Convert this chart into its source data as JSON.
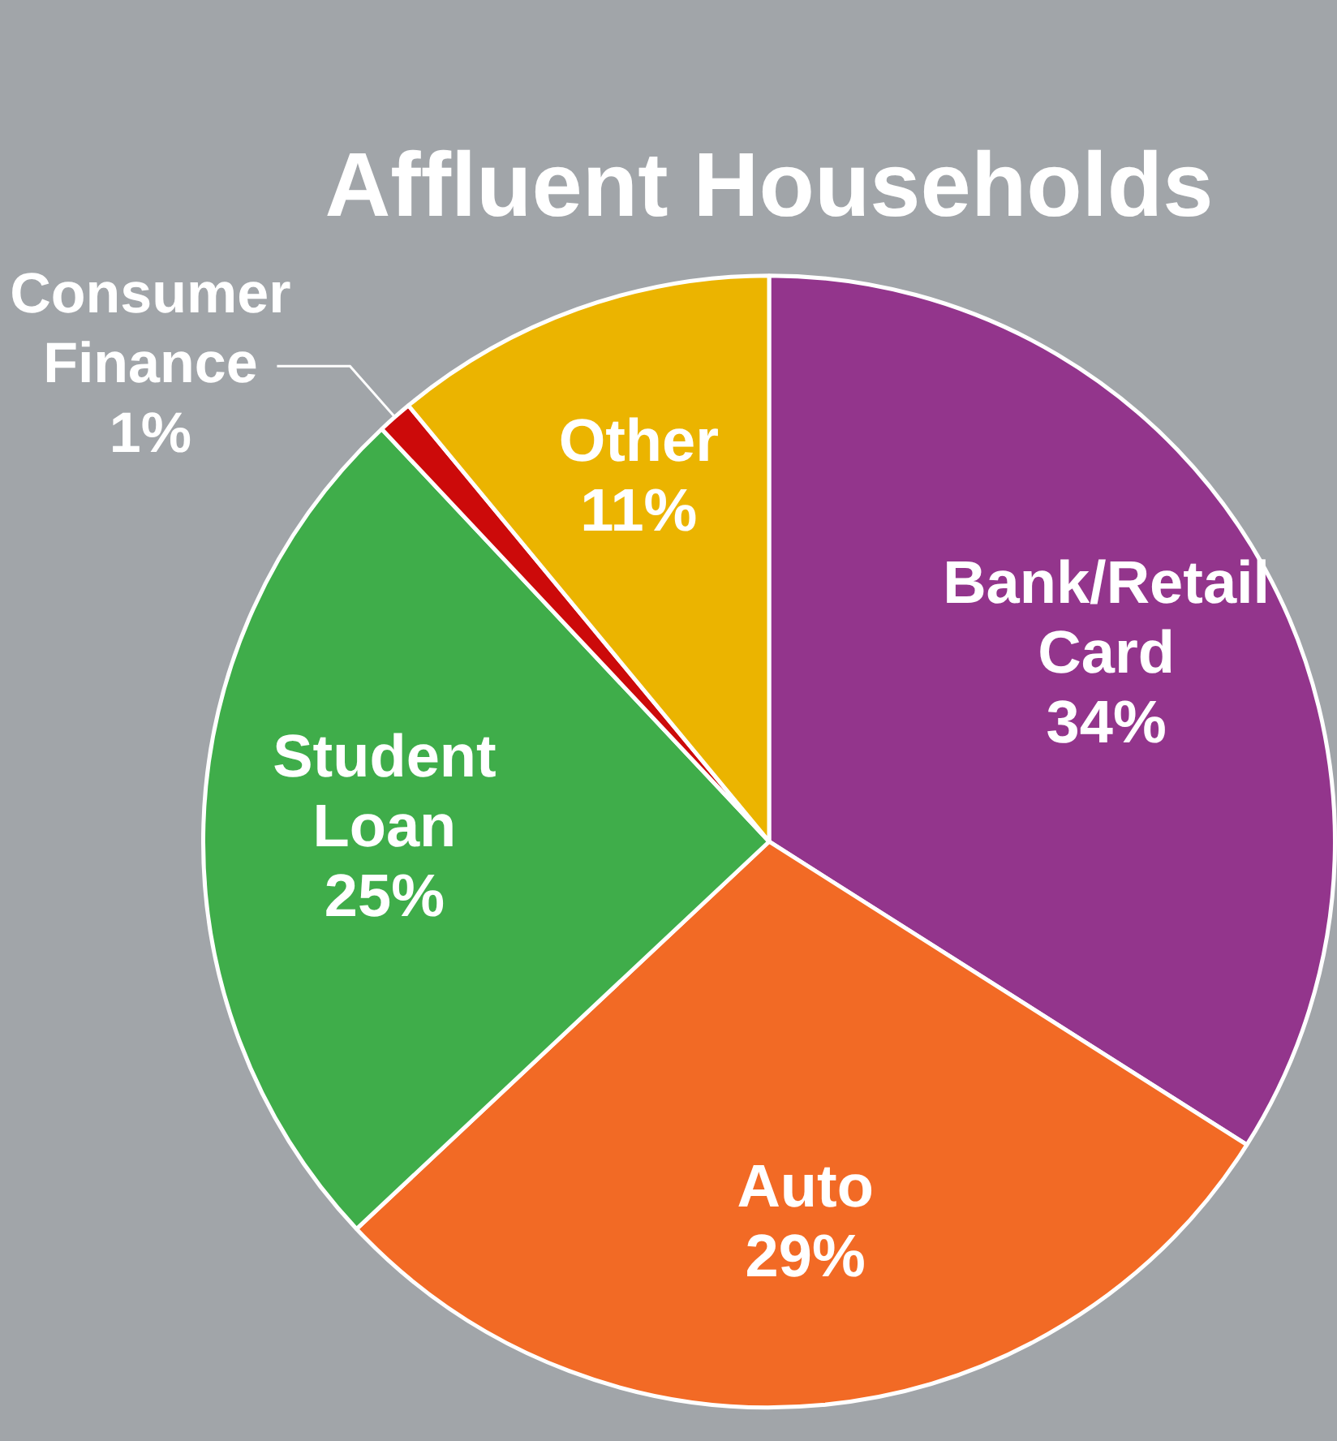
{
  "chart_data": {
    "type": "pie",
    "title": "Affluent Households",
    "categories": [
      "Bank/Retail Card",
      "Auto",
      "Student Loan",
      "Consumer Finance",
      "Other"
    ],
    "values": [
      34,
      29,
      25,
      1,
      11
    ],
    "colors": [
      "#93358c",
      "#f26a25",
      "#3fad4a",
      "#cc0a0a",
      "#ebb400"
    ],
    "value_labels": [
      "34%",
      "29%",
      "25%",
      "1%",
      "11%"
    ],
    "legend": false
  }
}
